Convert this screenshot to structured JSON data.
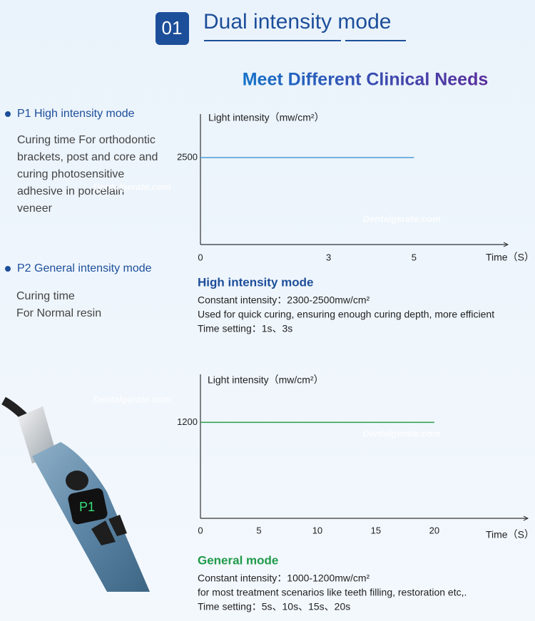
{
  "header": {
    "number": "01",
    "title": "Dual intensity mode",
    "subtitle": "Meet Different Clinical Needs"
  },
  "modes_left": [
    {
      "heading": "P1 High intensity mode",
      "lines": [
        "Curing time For orthodontic",
        "brackets, post and core and",
        "curing photosensitive",
        "adhesive in porcelain",
        "veneer"
      ]
    },
    {
      "heading": "P2 General intensity mode",
      "lines": [
        "Curing time",
        "For Normal resin"
      ]
    }
  ],
  "device_display": "P1",
  "watermark": "Dentalgerate.com",
  "chart_data": [
    {
      "type": "line",
      "ylabel": "Light intensity（mw/cm²）",
      "xlabel": "Time（S）",
      "x": [
        0,
        5
      ],
      "values": [
        2500,
        2500
      ],
      "color": "#4a9fd8",
      "xlim": [
        0,
        7.2
      ],
      "xticks": [
        0,
        3,
        5
      ],
      "ylim": [
        0,
        3750
      ],
      "yticks": [
        2500
      ],
      "grid": false,
      "caption": {
        "heading": "High intensity mode",
        "lines": [
          "Constant intensity：2300-2500mw/cm²",
          "Used for quick curing, ensuring enough curing depth, more efficient",
          "Time setting：1s、3s"
        ]
      }
    },
    {
      "type": "line",
      "ylabel": "Light intensity（mw/cm²）",
      "xlabel": "Time（S）",
      "x": [
        0,
        20
      ],
      "values": [
        1200,
        1200
      ],
      "color": "#2a9d4a",
      "xlim": [
        0,
        28
      ],
      "xticks": [
        0,
        5,
        10,
        15,
        20
      ],
      "ylim": [
        0,
        1800
      ],
      "yticks": [
        1200
      ],
      "grid": false,
      "caption": {
        "heading": "General mode",
        "lines": [
          "Constant intensity：1000-1200mw/cm²",
          "for most treatment scenarios like teeth filling, restoration etc,.",
          "Time setting：5s、10s、15s、20s"
        ]
      }
    }
  ]
}
